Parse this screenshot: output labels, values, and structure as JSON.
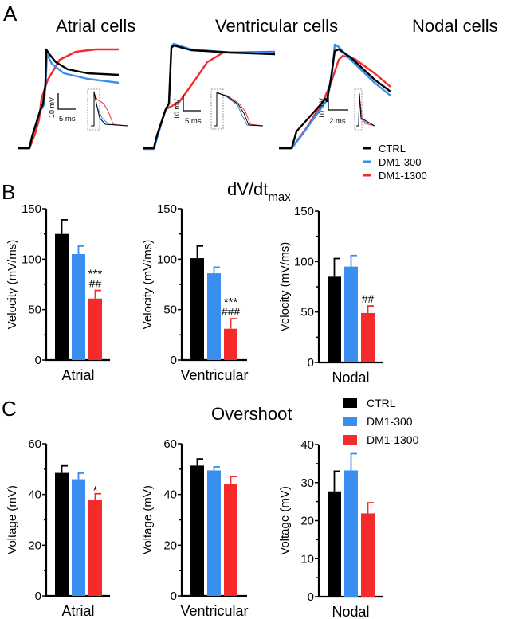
{
  "colors": {
    "CTRL": "#000000",
    "DM1-300": "#3a8ef0",
    "DM1-1300": "#f52a2a"
  },
  "panel_a": {
    "letter": "A",
    "titles": [
      "Atrial cells",
      "Ventricular cells",
      "Nodal cells"
    ],
    "scale_bars": [
      {
        "v": "10 mV",
        "h": "5 ms"
      },
      {
        "v": "10 mV",
        "h": "5 ms"
      },
      {
        "v": "10 mV",
        "h": "2 ms"
      }
    ],
    "legend": [
      "CTRL",
      "DM1-300",
      "DM1-1300"
    ]
  },
  "chart_data": [
    {
      "type": "bar",
      "panel": "B",
      "title": "dV/dt",
      "title_sub": "max",
      "category": "Atrial",
      "ylabel": "Velocity (mV/ms)",
      "ylim": [
        0,
        150
      ],
      "yticks": [
        0,
        50,
        100,
        150
      ],
      "series": [
        {
          "name": "CTRL",
          "value": 125,
          "error": 14
        },
        {
          "name": "DM1-300",
          "value": 105,
          "error": 8
        },
        {
          "name": "DM1-1300",
          "value": 61,
          "error": 8
        }
      ],
      "annotations": [
        "***",
        "##"
      ]
    },
    {
      "type": "bar",
      "panel": "B",
      "category": "Ventricular",
      "ylabel": "Velocity (mV/ms)",
      "ylim": [
        0,
        150
      ],
      "yticks": [
        0,
        50,
        100,
        150
      ],
      "series": [
        {
          "name": "CTRL",
          "value": 101,
          "error": 12
        },
        {
          "name": "DM1-300",
          "value": 86,
          "error": 6
        },
        {
          "name": "DM1-1300",
          "value": 31,
          "error": 10
        }
      ],
      "annotations": [
        "***",
        "###"
      ]
    },
    {
      "type": "bar",
      "panel": "B",
      "category": "Nodal",
      "ylabel": "Velocity (mV/ms)",
      "ylim": [
        0,
        150
      ],
      "yticks": [
        0,
        50,
        100,
        150
      ],
      "series": [
        {
          "name": "CTRL",
          "value": 85,
          "error": 18
        },
        {
          "name": "DM1-300",
          "value": 95,
          "error": 11
        },
        {
          "name": "DM1-1300",
          "value": 49,
          "error": 7
        }
      ],
      "annotations": [
        "##"
      ]
    },
    {
      "type": "bar",
      "panel": "C",
      "title": "Overshoot",
      "category": "Atrial",
      "ylabel": "Voltage (mV)",
      "ylim": [
        0,
        60
      ],
      "yticks": [
        0,
        20,
        40,
        60
      ],
      "series": [
        {
          "name": "CTRL",
          "value": 48.5,
          "error": 2.8
        },
        {
          "name": "DM1-300",
          "value": 46,
          "error": 2.4
        },
        {
          "name": "DM1-1300",
          "value": 37.7,
          "error": 2.6
        }
      ],
      "annotations": [
        "*"
      ]
    },
    {
      "type": "bar",
      "panel": "C",
      "category": "Ventricular",
      "ylabel": "Voltage (mV)",
      "ylim": [
        0,
        60
      ],
      "yticks": [
        0,
        20,
        40,
        60
      ],
      "series": [
        {
          "name": "CTRL",
          "value": 51.4,
          "error": 2.6
        },
        {
          "name": "DM1-300",
          "value": 49.5,
          "error": 1.4
        },
        {
          "name": "DM1-1300",
          "value": 44.3,
          "error": 2.8
        }
      ],
      "annotations": []
    },
    {
      "type": "bar",
      "panel": "C",
      "category": "Nodal",
      "ylabel": "Voltage (mV)",
      "ylim": [
        0,
        40
      ],
      "yticks": [
        0,
        10,
        20,
        30,
        40
      ],
      "series": [
        {
          "name": "CTRL",
          "value": 27.7,
          "error": 5.3
        },
        {
          "name": "DM1-300",
          "value": 33.2,
          "error": 4.4
        },
        {
          "name": "DM1-1300",
          "value": 21.9,
          "error": 2.8
        }
      ],
      "annotations": []
    }
  ],
  "panel_b": {
    "letter": "B",
    "title": "dV/dt",
    "title_sub": "max"
  },
  "panel_c": {
    "letter": "C",
    "title": "Overshoot",
    "legend": [
      "CTRL",
      "DM1-300",
      "DM1-1300"
    ]
  }
}
